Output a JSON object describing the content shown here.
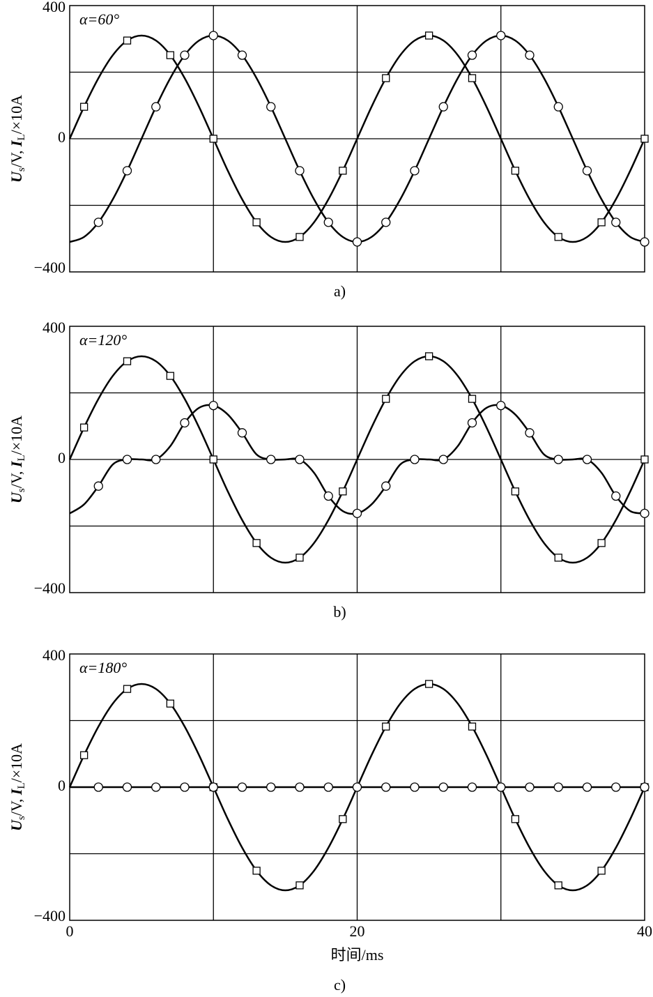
{
  "chart_data": [
    {
      "type": "line",
      "annotation": "α=60°",
      "caption": "a)",
      "ylabel": [
        "U",
        "s",
        "/V, ",
        "I",
        "L",
        "/×10A"
      ],
      "xlim": [
        0,
        40
      ],
      "ylim": [
        -400,
        400
      ],
      "yticks": [
        {
          "value": -400,
          "label": "−400"
        },
        0,
        400
      ],
      "xgrid": [
        10,
        20,
        30
      ],
      "ygrid": [
        -200,
        0,
        200
      ],
      "x": [
        0,
        1,
        2,
        3,
        4,
        5,
        6,
        7,
        8,
        9,
        10,
        11,
        12,
        13,
        14,
        15,
        16,
        17,
        18,
        19,
        20,
        21,
        22,
        23,
        24,
        25,
        26,
        27,
        28,
        29,
        30,
        31,
        32,
        33,
        34,
        35,
        36,
        37,
        38,
        39,
        40
      ],
      "series": [
        {
          "color": "#000000",
          "marker": "square",
          "values": [
            0,
            96,
            182,
            251,
            295,
            310,
            295,
            251,
            182,
            96,
            0,
            -96,
            -182,
            -251,
            -295,
            -310,
            -295,
            -251,
            -182,
            -96,
            0,
            96,
            182,
            251,
            295,
            310,
            295,
            251,
            182,
            96,
            0,
            -96,
            -182,
            -251,
            -295,
            -310,
            -295,
            -251,
            -182,
            -96,
            0
          ]
        },
        {
          "color": "#000000",
          "marker": "circle",
          "values": [
            -310,
            -295,
            -251,
            -182,
            -96,
            0,
            96,
            182,
            251,
            295,
            310,
            295,
            251,
            182,
            96,
            0,
            -96,
            -182,
            -251,
            -295,
            -310,
            -295,
            -251,
            -182,
            -96,
            0,
            96,
            182,
            251,
            295,
            310,
            295,
            251,
            182,
            96,
            0,
            -96,
            -182,
            -251,
            -295,
            -310
          ]
        }
      ]
    },
    {
      "type": "line",
      "annotation": "α=120°",
      "caption": "b)",
      "ylabel": [
        "U",
        "s",
        "/V, ",
        "I",
        "L",
        "/×10A"
      ],
      "xlim": [
        0,
        40
      ],
      "ylim": [
        -400,
        400
      ],
      "yticks": [
        {
          "value": -400,
          "label": "−400"
        },
        0,
        400
      ],
      "xgrid": [
        10,
        20,
        30
      ],
      "ygrid": [
        -200,
        0,
        200
      ],
      "x": [
        0,
        1,
        2,
        3,
        4,
        5,
        6,
        7,
        8,
        9,
        10,
        11,
        12,
        13,
        14,
        15,
        16,
        17,
        18,
        19,
        20,
        21,
        22,
        23,
        24,
        25,
        26,
        27,
        28,
        29,
        30,
        31,
        32,
        33,
        34,
        35,
        36,
        37,
        38,
        39,
        40
      ],
      "series": [
        {
          "color": "#000000",
          "marker": "square",
          "values": [
            0,
            96,
            182,
            251,
            295,
            310,
            295,
            251,
            182,
            96,
            0,
            -96,
            -182,
            -251,
            -295,
            -310,
            -295,
            -251,
            -182,
            -96,
            0,
            96,
            182,
            251,
            295,
            310,
            295,
            251,
            182,
            96,
            0,
            -96,
            -182,
            -251,
            -295,
            -310,
            -295,
            -251,
            -182,
            -96,
            0
          ]
        },
        {
          "color": "#000000",
          "marker": "circle",
          "values": [
            -162,
            -135,
            -80,
            -15,
            0,
            0,
            0,
            40,
            110,
            155,
            162,
            135,
            80,
            15,
            0,
            0,
            0,
            -40,
            -110,
            -155,
            -162,
            -135,
            -80,
            -15,
            0,
            0,
            0,
            40,
            110,
            155,
            162,
            135,
            80,
            15,
            0,
            0,
            0,
            -40,
            -110,
            -155,
            -162
          ]
        }
      ]
    },
    {
      "type": "line",
      "annotation": "α=180°",
      "caption": "c)",
      "ylabel": [
        "U",
        "s",
        "/V, ",
        "I",
        "L",
        "/×10A"
      ],
      "xlabel": "时间/ms",
      "xlim": [
        0,
        40
      ],
      "ylim": [
        -400,
        400
      ],
      "xticks": [
        0,
        20,
        40
      ],
      "yticks": [
        {
          "value": -400,
          "label": "−400"
        },
        0,
        400
      ],
      "xgrid": [
        10,
        20,
        30
      ],
      "ygrid": [
        -200,
        0,
        200
      ],
      "x": [
        0,
        1,
        2,
        3,
        4,
        5,
        6,
        7,
        8,
        9,
        10,
        11,
        12,
        13,
        14,
        15,
        16,
        17,
        18,
        19,
        20,
        21,
        22,
        23,
        24,
        25,
        26,
        27,
        28,
        29,
        30,
        31,
        32,
        33,
        34,
        35,
        36,
        37,
        38,
        39,
        40
      ],
      "series": [
        {
          "color": "#000000",
          "marker": "square",
          "values": [
            0,
            96,
            182,
            251,
            295,
            310,
            295,
            251,
            182,
            96,
            0,
            -96,
            -182,
            -251,
            -295,
            -310,
            -295,
            -251,
            -182,
            -96,
            0,
            96,
            182,
            251,
            295,
            310,
            295,
            251,
            182,
            96,
            0,
            -96,
            -182,
            -251,
            -295,
            -310,
            -295,
            -251,
            -182,
            -96,
            0
          ]
        },
        {
          "color": "#000000",
          "marker": "circle",
          "values": [
            0,
            0,
            0,
            0,
            0,
            0,
            0,
            0,
            0,
            0,
            0,
            0,
            0,
            0,
            0,
            0,
            0,
            0,
            0,
            0,
            0,
            0,
            0,
            0,
            0,
            0,
            0,
            0,
            0,
            0,
            0,
            0,
            0,
            0,
            0,
            0,
            0,
            0,
            0,
            0,
            0
          ]
        }
      ]
    }
  ]
}
